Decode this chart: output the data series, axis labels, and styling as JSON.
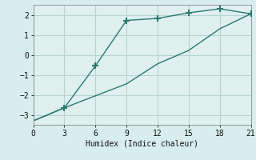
{
  "xlabel": "Humidex (Indice chaleur)",
  "line1_x": [
    0,
    3,
    6,
    9,
    12,
    15,
    18,
    21
  ],
  "line1_y": [
    -3.3,
    -2.65,
    -0.55,
    1.72,
    1.82,
    2.1,
    2.3,
    2.05
  ],
  "line1_marker_x": [
    3,
    6,
    9,
    12,
    15,
    18,
    21
  ],
  "line1_marker_y": [
    -2.65,
    -0.55,
    1.72,
    1.82,
    2.1,
    2.3,
    2.05
  ],
  "line2_x": [
    0,
    3,
    6,
    9,
    12,
    15,
    18,
    21
  ],
  "line2_y": [
    -3.3,
    -2.65,
    -2.05,
    -1.45,
    -0.45,
    0.22,
    1.3,
    2.05
  ],
  "line_color": "#2a7a6e",
  "background_color": "#d8eeed",
  "grid_color": "#b8d4d2",
  "plot_bg": "#dff0ef",
  "xlim": [
    0,
    21
  ],
  "ylim": [
    -3.5,
    2.5
  ],
  "xticks": [
    0,
    3,
    6,
    9,
    12,
    15,
    18,
    21
  ],
  "yticks": [
    -3,
    -2,
    -1,
    0,
    1,
    2
  ]
}
